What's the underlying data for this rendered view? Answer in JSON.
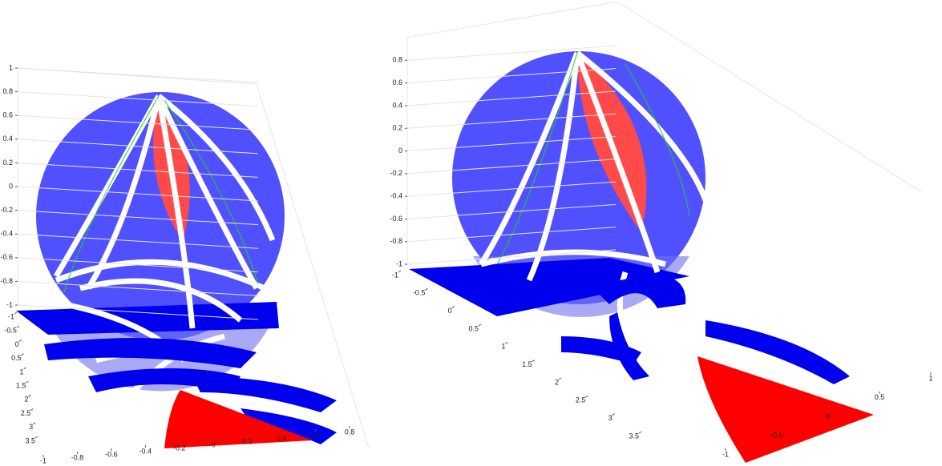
{
  "chart_data": [
    {
      "type": "surface3d",
      "zlim": [
        -1,
        1
      ],
      "zticks": [
        1,
        0.8,
        0.6,
        0.4,
        0.2,
        0,
        -0.2,
        -0.4,
        -0.6,
        -0.8,
        -1
      ],
      "xlim": [
        -1,
        3.5
      ],
      "xticks": [
        -1,
        -0.5,
        0,
        0.5,
        1,
        1.5,
        2,
        2.5,
        3,
        3.5
      ],
      "ylim": [
        -1,
        0.8
      ],
      "yticks": [
        -1,
        -0.8,
        -0.6,
        -0.4,
        -0.2,
        0,
        0.2,
        0.4,
        0.6,
        0.8
      ],
      "grid": true
    },
    {
      "type": "surface3d",
      "zlim": [
        -1,
        1
      ],
      "zticks": [
        0.8,
        0.6,
        0.4,
        0.2,
        0,
        -0.2,
        -0.4,
        -0.6,
        -0.8,
        -1
      ],
      "xlim": [
        -1,
        3.5
      ],
      "xticks": [
        -1,
        -0.5,
        0,
        0.5,
        1,
        1.5,
        2,
        2.5,
        3,
        3.5
      ],
      "ylim": [
        -1,
        1
      ],
      "yticks": [
        -1,
        -0.5,
        0,
        0.5,
        1
      ],
      "grid": true
    }
  ]
}
